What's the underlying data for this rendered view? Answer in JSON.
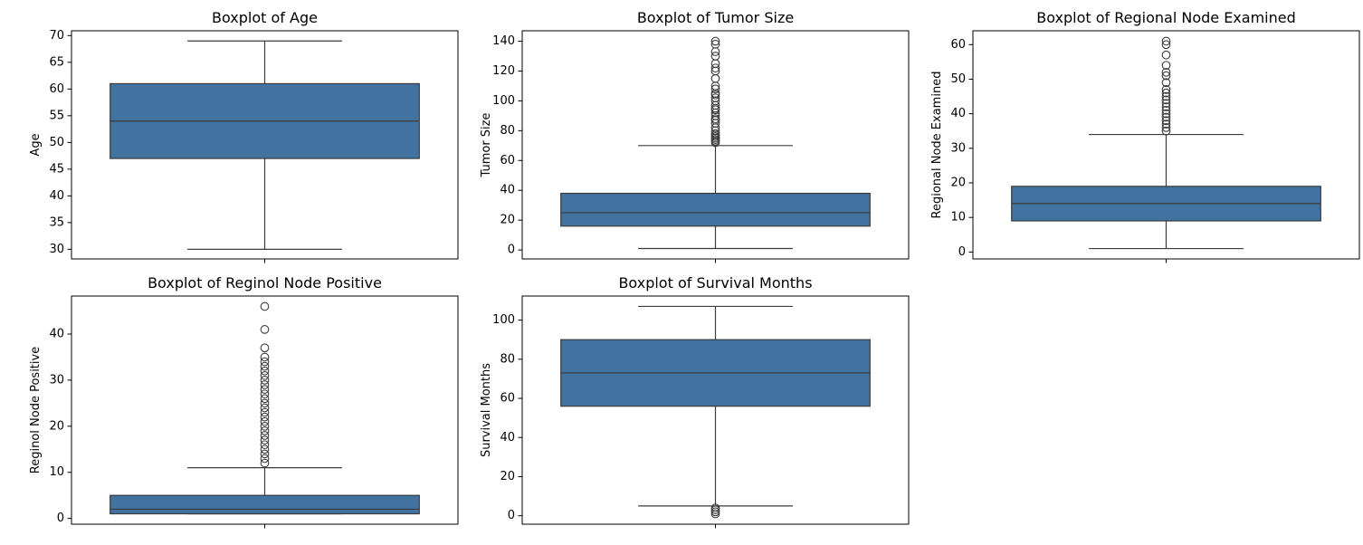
{
  "colors": {
    "box_fill": "#4272a0",
    "line": "#3b3b3b",
    "frame": "#000000",
    "background": "#ffffff"
  },
  "chart_data": [
    {
      "type": "boxplot",
      "title": "Boxplot of Age",
      "xlabel": "",
      "ylabel": "Age",
      "ylim": [
        28.2,
        70.9
      ],
      "yticks": [
        30,
        35,
        40,
        45,
        50,
        55,
        60,
        65,
        70
      ],
      "box": {
        "whisker_low": 30,
        "q1": 47,
        "median": 54,
        "q3": 61,
        "whisker_high": 69
      },
      "outliers": []
    },
    {
      "type": "boxplot",
      "title": "Boxplot of Tumor Size",
      "xlabel": "",
      "ylabel": "Tumor Size",
      "ylim": [
        -6,
        147
      ],
      "yticks": [
        0,
        20,
        40,
        60,
        80,
        100,
        120,
        140
      ],
      "box": {
        "whisker_low": 1,
        "q1": 16,
        "median": 25,
        "q3": 38,
        "whisker_high": 70
      },
      "outliers": [
        72,
        73,
        74,
        75,
        76,
        77,
        78,
        80,
        82,
        85,
        87,
        88,
        90,
        92,
        94,
        95,
        97,
        100,
        102,
        104,
        105,
        108,
        110,
        115,
        120,
        122,
        125,
        130,
        133,
        138,
        140
      ]
    },
    {
      "type": "boxplot",
      "title": "Boxplot of Regional Node Examined",
      "xlabel": "",
      "ylabel": "Regional Node Examined",
      "ylim": [
        -2,
        64
      ],
      "yticks": [
        0,
        10,
        20,
        30,
        40,
        50,
        60
      ],
      "box": {
        "whisker_low": 1,
        "q1": 9,
        "median": 14,
        "q3": 19,
        "whisker_high": 34
      },
      "outliers": [
        35,
        36,
        37,
        38,
        39,
        40,
        41,
        42,
        43,
        44,
        45,
        46,
        47,
        49,
        51,
        52,
        54,
        57,
        60,
        61
      ]
    },
    {
      "type": "boxplot",
      "title": "Boxplot of Reginol Node Positive",
      "xlabel": "",
      "ylabel": "Reginol Node Positive",
      "ylim": [
        -1.25,
        48.25
      ],
      "yticks": [
        0,
        10,
        20,
        30,
        40
      ],
      "box": {
        "whisker_low": 1,
        "q1": 1,
        "median": 2,
        "q3": 5,
        "whisker_high": 11
      },
      "outliers": [
        12,
        13,
        14,
        15,
        16,
        17,
        18,
        19,
        20,
        21,
        22,
        23,
        24,
        25,
        26,
        27,
        28,
        29,
        30,
        31,
        32,
        33,
        34,
        35,
        37,
        41,
        46
      ]
    },
    {
      "type": "boxplot",
      "title": "Boxplot of Survival Months",
      "xlabel": "",
      "ylabel": "Survival Months",
      "ylim": [
        -4.3,
        112.3
      ],
      "yticks": [
        0,
        20,
        40,
        60,
        80,
        100
      ],
      "box": {
        "whisker_low": 5,
        "q1": 56,
        "median": 73,
        "q3": 90,
        "whisker_high": 107
      },
      "outliers": [
        1,
        2,
        3,
        4
      ]
    }
  ]
}
